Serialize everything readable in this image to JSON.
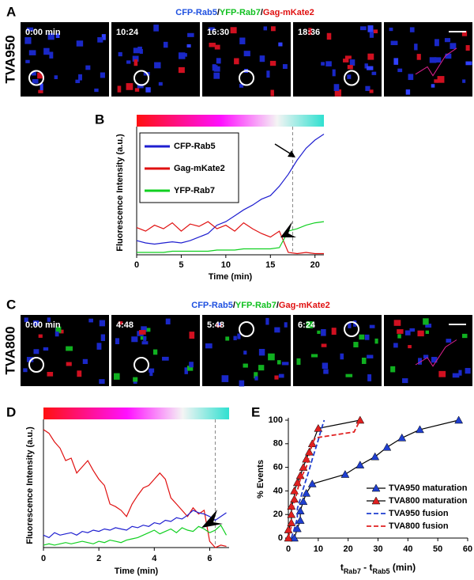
{
  "panel_a": {
    "label": "A",
    "title_parts": [
      "CFP-Rab5",
      "/",
      "YFP-Rab7",
      "/",
      "Gag-mKate2"
    ],
    "row_label": "TVA950",
    "timestamps": [
      "0:00 min",
      "10:24",
      "16:30",
      "18:36"
    ]
  },
  "panel_c": {
    "label": "C",
    "title_parts": [
      "CFP-Rab5",
      "/",
      "YFP-Rab7",
      "/",
      "Gag-mKate2"
    ],
    "row_label": "TVA800",
    "timestamps": [
      "0:00 min",
      "4:48",
      "5:48",
      "6:24"
    ]
  },
  "chart_data": [
    {
      "type": "line",
      "panel_label": "B",
      "ylabel": "Fluorescence Intensity (a.u.)",
      "xlabel": "Time (min)",
      "xlim": [
        0,
        21
      ],
      "xticks": [
        0,
        5,
        10,
        15,
        20
      ],
      "ylim": [
        0,
        1.05
      ],
      "vline": 17.5,
      "legend": "upper left",
      "x": [
        0,
        1,
        2,
        3,
        4,
        5,
        6,
        7,
        8,
        9,
        10,
        11,
        12,
        13,
        14,
        15,
        16,
        17,
        18,
        19,
        20,
        21
      ],
      "series": [
        {
          "name": "CFP-Rab5",
          "color": "#1f1fd0",
          "values": [
            0.12,
            0.1,
            0.09,
            0.1,
            0.11,
            0.1,
            0.12,
            0.15,
            0.18,
            0.25,
            0.28,
            0.33,
            0.38,
            0.42,
            0.47,
            0.5,
            0.58,
            0.68,
            0.8,
            0.9,
            0.97,
            1.02
          ]
        },
        {
          "name": "Gag-mKate2",
          "color": "#e01010",
          "values": [
            0.23,
            0.2,
            0.25,
            0.22,
            0.27,
            0.2,
            0.26,
            0.24,
            0.28,
            0.22,
            0.25,
            0.2,
            0.27,
            0.22,
            0.18,
            0.15,
            0.2,
            0.02,
            0.01,
            0.02,
            0.01,
            0.01
          ]
        },
        {
          "name": "YFP-Rab7",
          "color": "#10d020",
          "values": [
            0.02,
            0.02,
            0.02,
            0.02,
            0.03,
            0.03,
            0.03,
            0.03,
            0.03,
            0.04,
            0.04,
            0.04,
            0.05,
            0.05,
            0.05,
            0.05,
            0.06,
            0.2,
            0.22,
            0.25,
            0.27,
            0.28
          ]
        }
      ]
    },
    {
      "type": "line",
      "panel_label": "D",
      "ylabel": "Fluorescence Intensity (a.u.)",
      "xlabel": "Time (min)",
      "xlim": [
        0,
        6.7
      ],
      "xticks": [
        0,
        2,
        4,
        6
      ],
      "ylim": [
        0,
        1
      ],
      "vline": 6.2,
      "x": [
        0,
        0.2,
        0.4,
        0.6,
        0.8,
        1,
        1.2,
        1.4,
        1.6,
        1.8,
        2,
        2.2,
        2.4,
        2.6,
        2.8,
        3,
        3.2,
        3.4,
        3.6,
        3.8,
        4,
        4.2,
        4.4,
        4.6,
        4.8,
        5,
        5.2,
        5.4,
        5.6,
        5.8,
        6,
        6.2,
        6.4,
        6.6
      ],
      "series": [
        {
          "color": "#e01010",
          "values": [
            0.95,
            0.92,
            0.85,
            0.8,
            0.7,
            0.72,
            0.6,
            0.65,
            0.7,
            0.62,
            0.55,
            0.5,
            0.35,
            0.33,
            0.3,
            0.25,
            0.35,
            0.42,
            0.48,
            0.5,
            0.55,
            0.6,
            0.55,
            0.4,
            0.35,
            0.3,
            0.25,
            0.32,
            0.27,
            0.3,
            0.05,
            0.0,
            0.02,
            0.01
          ]
        },
        {
          "color": "#1f1fd0",
          "values": [
            0.1,
            0.08,
            0.12,
            0.1,
            0.11,
            0.12,
            0.1,
            0.13,
            0.12,
            0.14,
            0.13,
            0.15,
            0.14,
            0.16,
            0.15,
            0.14,
            0.17,
            0.16,
            0.18,
            0.17,
            0.2,
            0.19,
            0.22,
            0.21,
            0.24,
            0.23,
            0.26,
            0.3,
            0.28,
            0.27,
            0.25,
            0.22,
            0.25,
            0.28
          ]
        },
        {
          "color": "#10d020",
          "values": [
            0.02,
            0.03,
            0.02,
            0.03,
            0.04,
            0.03,
            0.04,
            0.05,
            0.04,
            0.03,
            0.05,
            0.04,
            0.06,
            0.05,
            0.04,
            0.06,
            0.07,
            0.08,
            0.1,
            0.12,
            0.14,
            0.11,
            0.13,
            0.15,
            0.12,
            0.16,
            0.14,
            0.13,
            0.17,
            0.15,
            0.12,
            0.14,
            0.18,
            0.1
          ]
        }
      ]
    },
    {
      "type": "line",
      "panel_label": "E",
      "ylabel": "% Events",
      "xlabel_parts": [
        "t",
        "Rab7",
        " - t",
        "Rab5",
        " (min)"
      ],
      "xlim": [
        0,
        60
      ],
      "xticks": [
        0,
        10,
        20,
        30,
        40,
        50,
        60
      ],
      "ylim": [
        0,
        100
      ],
      "yticks": [
        0,
        20,
        40,
        60,
        80,
        100
      ],
      "legend": "lower right",
      "series": [
        {
          "name": "TVA950 maturation",
          "color": "#1f3fd0",
          "line_color": "#000000",
          "marker": "triangle",
          "x": [
            2,
            3,
            4,
            4,
            5,
            6,
            8,
            19,
            24,
            29,
            33,
            38,
            44,
            57
          ],
          "values": [
            0,
            8,
            15,
            23,
            31,
            38,
            46,
            54,
            62,
            69,
            77,
            85,
            92,
            100
          ]
        },
        {
          "name": "TVA800 maturation",
          "color": "#e02020",
          "line_color": "#000000",
          "marker": "triangle",
          "x": [
            0,
            0,
            1,
            1,
            1,
            2,
            2,
            3,
            4,
            5,
            6,
            7,
            8,
            10,
            24
          ],
          "values": [
            0,
            7,
            13,
            20,
            27,
            33,
            40,
            47,
            53,
            60,
            67,
            73,
            80,
            93,
            100
          ]
        },
        {
          "name": "TVA950 fusion",
          "color": "#1f3fd0",
          "dash": true,
          "x": [
            1,
            2,
            3,
            3,
            4,
            5,
            6,
            7,
            8,
            9,
            10,
            11,
            12
          ],
          "values": [
            0,
            8,
            17,
            25,
            33,
            42,
            50,
            58,
            67,
            75,
            83,
            92,
            100
          ]
        },
        {
          "name": "TVA800 fusion",
          "color": "#e02020",
          "dash": true,
          "x": [
            0,
            1,
            1,
            2,
            3,
            4,
            6,
            7,
            8,
            9,
            22,
            24
          ],
          "values": [
            0,
            10,
            20,
            30,
            40,
            50,
            60,
            70,
            80,
            85,
            90,
            100
          ]
        }
      ]
    }
  ]
}
